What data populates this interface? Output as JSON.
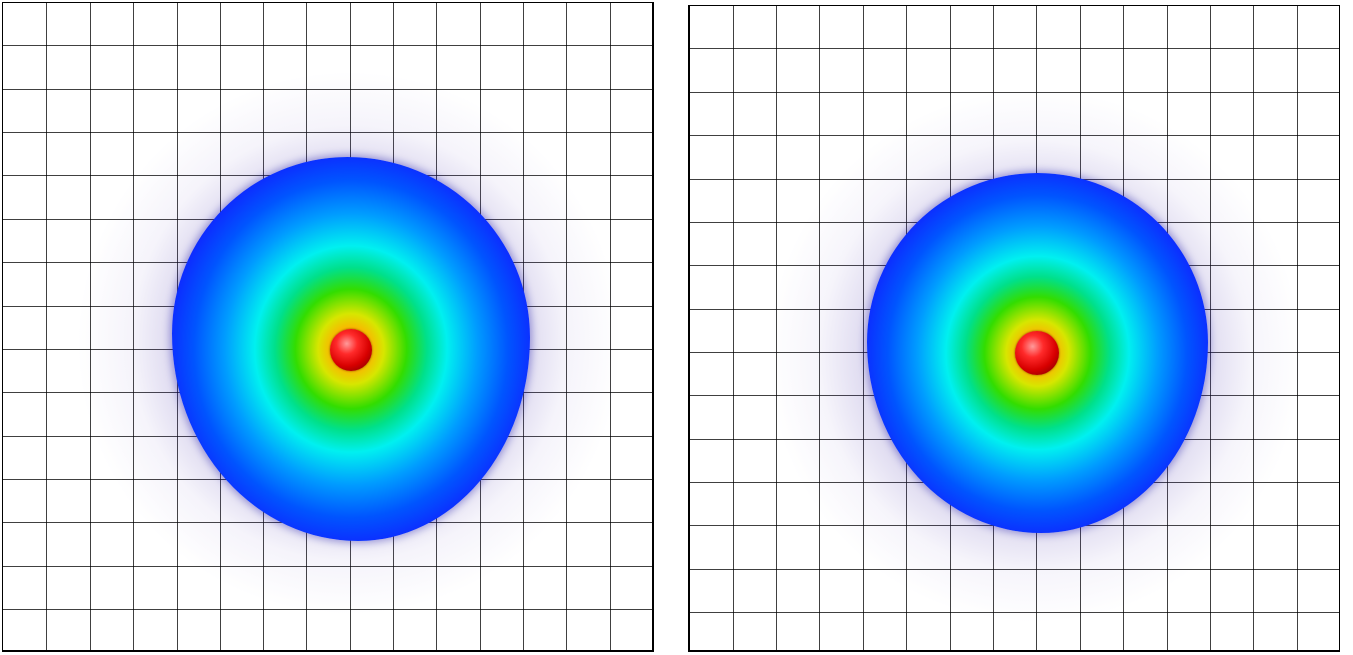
{
  "scene": {
    "panels": [
      {
        "id": "left",
        "grid_color": "#000000",
        "colormap": [
          "#ff0000",
          "#ffcc00",
          "#00cc00",
          "#00ffff",
          "#0066ff",
          "#0000ff"
        ],
        "halo_color": "#6a5acd",
        "atom_color": "#ff1010"
      },
      {
        "id": "right",
        "grid_color": "#000000",
        "colormap": [
          "#ff0000",
          "#ffcc00",
          "#00cc00",
          "#00ffff",
          "#0066ff",
          "#0000ff"
        ],
        "halo_color": "#6a5acd",
        "atom_color": "#ff1010"
      }
    ]
  }
}
